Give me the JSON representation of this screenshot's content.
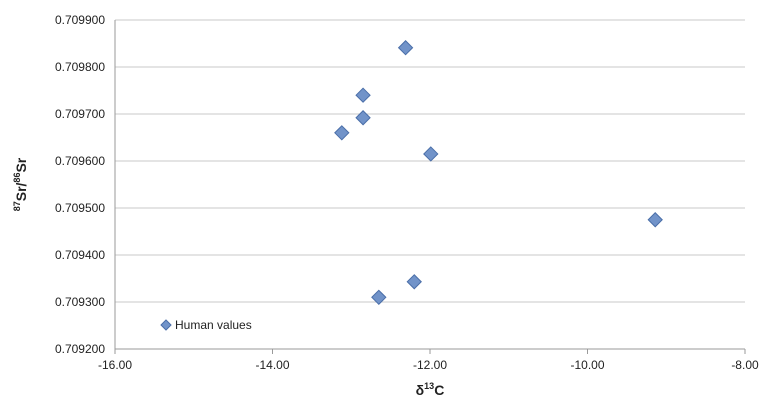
{
  "chart_data": {
    "type": "scatter",
    "title": "",
    "xlabel": {
      "base": "δ",
      "sup": "13",
      "rest": "C"
    },
    "ylabel": {
      "sup1": "87",
      "base1": "Sr/",
      "sup2": "86",
      "base2": "Sr"
    },
    "xlim": [
      -16.0,
      -8.0
    ],
    "ylim": [
      0.7092,
      0.7099
    ],
    "x_ticks": [
      "-16.00",
      "-14.00",
      "-12.00",
      "-10.00",
      "-8.00"
    ],
    "y_ticks": [
      "0.709200",
      "0.709300",
      "0.709400",
      "0.709500",
      "0.709600",
      "0.709700",
      "0.709800",
      "0.709900"
    ],
    "grid": "horizontal",
    "legend_position": "bottom-left",
    "marker": "diamond",
    "colors": {
      "marker_fill": "#7193c9",
      "marker_stroke": "#4a6ea8",
      "grid": "#c8c8c8",
      "axis": "#9a9a9a"
    },
    "series": [
      {
        "name": "Human values",
        "points": [
          {
            "x": -12.31,
            "y": 0.709841
          },
          {
            "x": -12.85,
            "y": 0.70974
          },
          {
            "x": -12.85,
            "y": 0.709692
          },
          {
            "x": -13.12,
            "y": 0.70966
          },
          {
            "x": -11.99,
            "y": 0.709615
          },
          {
            "x": -9.14,
            "y": 0.709475
          },
          {
            "x": -12.2,
            "y": 0.709343
          },
          {
            "x": -12.65,
            "y": 0.70931
          }
        ]
      }
    ]
  }
}
